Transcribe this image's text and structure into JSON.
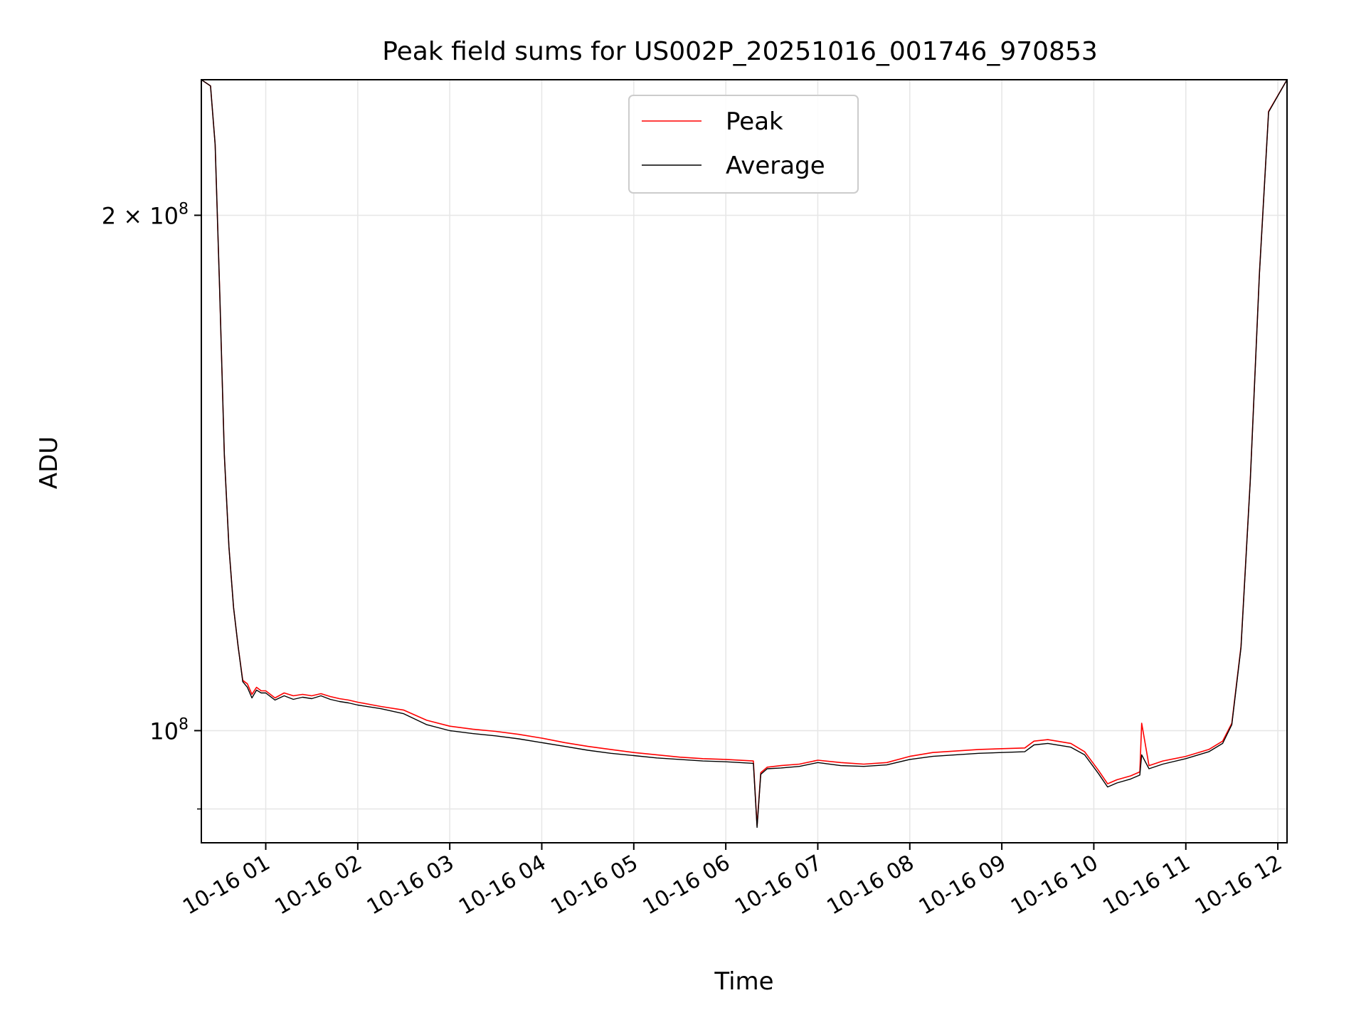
{
  "chart_data": {
    "type": "line",
    "title": "Peak field sums for US002P_20251016_001746_970853",
    "xlabel": "Time",
    "ylabel": "ADU",
    "yscale": "log",
    "grid": true,
    "legend_position": "top-center",
    "xlim_hours": [
      0.3,
      12.1
    ],
    "ylim": [
      86000000,
      240000000
    ],
    "x_ticks": [
      {
        "value": 1,
        "label": "10-16 01"
      },
      {
        "value": 2,
        "label": "10-16 02"
      },
      {
        "value": 3,
        "label": "10-16 03"
      },
      {
        "value": 4,
        "label": "10-16 04"
      },
      {
        "value": 5,
        "label": "10-16 05"
      },
      {
        "value": 6,
        "label": "10-16 06"
      },
      {
        "value": 7,
        "label": "10-16 07"
      },
      {
        "value": 8,
        "label": "10-16 08"
      },
      {
        "value": 9,
        "label": "10-16 09"
      },
      {
        "value": 10,
        "label": "10-16 10"
      },
      {
        "value": 11,
        "label": "10-16 11"
      },
      {
        "value": 12,
        "label": "10-16 12"
      }
    ],
    "y_ticks": [
      {
        "value": 100000000,
        "mantissa": "",
        "exponent": "8"
      },
      {
        "value": 200000000,
        "mantissa": "2",
        "exponent": "8"
      }
    ],
    "y_minor_ticks": [
      90000000
    ],
    "series": [
      {
        "name": "Peak",
        "color": "#ff0000",
        "x_hours": [
          0.3,
          0.4,
          0.45,
          0.5,
          0.55,
          0.6,
          0.65,
          0.7,
          0.75,
          0.8,
          0.85,
          0.9,
          0.95,
          1.0,
          1.1,
          1.2,
          1.3,
          1.4,
          1.5,
          1.6,
          1.7,
          1.8,
          1.9,
          2.0,
          2.25,
          2.5,
          2.75,
          3.0,
          3.25,
          3.5,
          3.75,
          4.0,
          4.25,
          4.5,
          4.75,
          5.0,
          5.25,
          5.5,
          5.75,
          6.0,
          6.3,
          6.34,
          6.38,
          6.45,
          6.6,
          6.8,
          7.0,
          7.25,
          7.5,
          7.75,
          8.0,
          8.25,
          8.5,
          8.75,
          9.0,
          9.25,
          9.35,
          9.5,
          9.75,
          9.9,
          10.05,
          10.15,
          10.25,
          10.4,
          10.5,
          10.52,
          10.6,
          10.75,
          11.0,
          11.25,
          11.4,
          11.5,
          11.6,
          11.7,
          11.8,
          11.9,
          12.1
        ],
        "values": [
          240000000,
          238000000,
          220000000,
          180000000,
          145000000,
          128000000,
          118000000,
          112000000,
          107000000,
          106500000,
          105000000,
          106000000,
          105500000,
          105500000,
          104500000,
          105200000,
          104800000,
          105000000,
          104800000,
          105100000,
          104700000,
          104400000,
          104200000,
          103900000,
          103300000,
          102800000,
          101400000,
          100600000,
          100200000,
          99900000,
          99500000,
          99000000,
          98400000,
          97900000,
          97500000,
          97100000,
          96800000,
          96500000,
          96300000,
          96200000,
          96000000,
          88000000,
          94500000,
          95200000,
          95400000,
          95600000,
          96100000,
          95800000,
          95600000,
          95800000,
          96600000,
          97100000,
          97300000,
          97500000,
          97600000,
          97700000,
          98600000,
          98800000,
          98300000,
          97200000,
          94800000,
          93100000,
          93600000,
          94100000,
          94600000,
          101000000,
          95400000,
          96000000,
          96600000,
          97500000,
          98600000,
          101000000,
          112000000,
          140000000,
          185000000,
          230000000,
          240000000
        ]
      },
      {
        "name": "Average",
        "color": "#000000",
        "x_hours": [
          0.3,
          0.4,
          0.45,
          0.5,
          0.55,
          0.6,
          0.65,
          0.7,
          0.75,
          0.8,
          0.85,
          0.9,
          0.95,
          1.0,
          1.1,
          1.2,
          1.3,
          1.4,
          1.5,
          1.6,
          1.7,
          1.8,
          1.9,
          2.0,
          2.25,
          2.5,
          2.75,
          3.0,
          3.25,
          3.5,
          3.75,
          4.0,
          4.25,
          4.5,
          4.75,
          5.0,
          5.25,
          5.5,
          5.75,
          6.0,
          6.3,
          6.34,
          6.38,
          6.45,
          6.6,
          6.8,
          7.0,
          7.25,
          7.5,
          7.75,
          8.0,
          8.25,
          8.5,
          8.75,
          9.0,
          9.25,
          9.35,
          9.5,
          9.75,
          9.9,
          10.05,
          10.15,
          10.25,
          10.4,
          10.5,
          10.52,
          10.6,
          10.75,
          11.0,
          11.25,
          11.4,
          11.5,
          11.6,
          11.7,
          11.8,
          11.9,
          12.1
        ],
        "values": [
          240000000,
          238000000,
          220000000,
          180000000,
          145000000,
          128000000,
          118000000,
          112000000,
          106800000,
          106000000,
          104500000,
          105600000,
          105200000,
          105200000,
          104200000,
          104800000,
          104300000,
          104600000,
          104400000,
          104800000,
          104300000,
          104000000,
          103800000,
          103500000,
          103000000,
          102300000,
          100800000,
          100000000,
          99600000,
          99300000,
          98900000,
          98400000,
          97900000,
          97400000,
          97000000,
          96700000,
          96400000,
          96200000,
          96000000,
          95900000,
          95700000,
          87800000,
          94300000,
          95000000,
          95100000,
          95300000,
          95800000,
          95400000,
          95300000,
          95500000,
          96200000,
          96600000,
          96800000,
          97000000,
          97100000,
          97200000,
          98100000,
          98300000,
          97800000,
          96800000,
          94400000,
          92700000,
          93200000,
          93700000,
          94200000,
          96800000,
          95000000,
          95600000,
          96300000,
          97200000,
          98300000,
          100800000,
          111800000,
          139800000,
          184800000,
          229800000,
          240000000
        ]
      }
    ]
  }
}
